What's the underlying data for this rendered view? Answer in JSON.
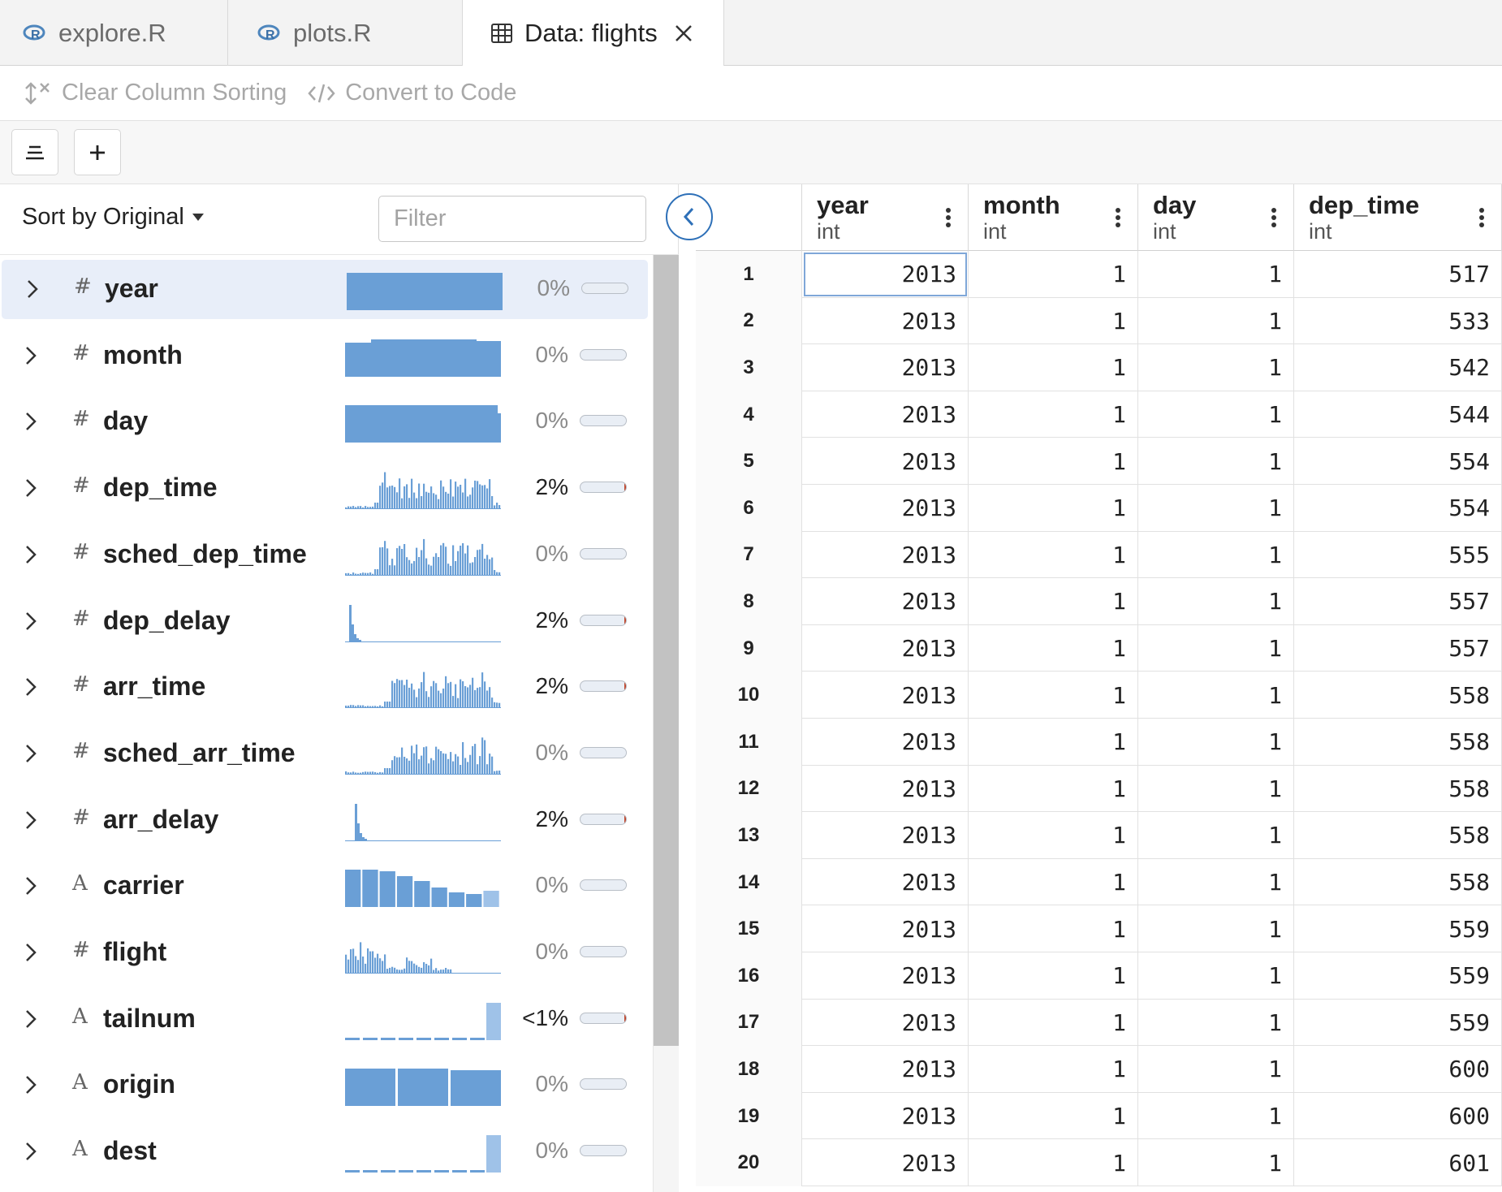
{
  "tabs": [
    {
      "label": "explore.R",
      "icon": "r-file-icon",
      "active": false
    },
    {
      "label": "plots.R",
      "icon": "r-file-icon",
      "active": false
    },
    {
      "label": "Data: flights",
      "icon": "table-icon",
      "active": true
    }
  ],
  "toolbar": {
    "clear_sorting_label": "Clear Column Sorting",
    "convert_to_code_label": "Convert to Code"
  },
  "summary_panel": {
    "sort_label": "Sort by Original",
    "filter_placeholder": "Filter",
    "columns": [
      {
        "name": "year",
        "type_glyph": "#",
        "missing": "0%",
        "missing_fraction": 0,
        "selected": true
      },
      {
        "name": "month",
        "type_glyph": "#",
        "missing": "0%",
        "missing_fraction": 0
      },
      {
        "name": "day",
        "type_glyph": "#",
        "missing": "0%",
        "missing_fraction": 0
      },
      {
        "name": "dep_time",
        "type_glyph": "#",
        "missing": "2%",
        "missing_fraction": 0.02
      },
      {
        "name": "sched_dep_time",
        "type_glyph": "#",
        "missing": "0%",
        "missing_fraction": 0
      },
      {
        "name": "dep_delay",
        "type_glyph": "#",
        "missing": "2%",
        "missing_fraction": 0.02
      },
      {
        "name": "arr_time",
        "type_glyph": "#",
        "missing": "2%",
        "missing_fraction": 0.02
      },
      {
        "name": "sched_arr_time",
        "type_glyph": "#",
        "missing": "0%",
        "missing_fraction": 0
      },
      {
        "name": "arr_delay",
        "type_glyph": "#",
        "missing": "2%",
        "missing_fraction": 0.02
      },
      {
        "name": "carrier",
        "type_glyph": "A",
        "missing": "0%",
        "missing_fraction": 0
      },
      {
        "name": "flight",
        "type_glyph": "#",
        "missing": "0%",
        "missing_fraction": 0
      },
      {
        "name": "tailnum",
        "type_glyph": "A",
        "missing": "<1%",
        "missing_fraction": 0.01
      },
      {
        "name": "origin",
        "type_glyph": "A",
        "missing": "0%",
        "missing_fraction": 0
      },
      {
        "name": "dest",
        "type_glyph": "A",
        "missing": "0%",
        "missing_fraction": 0
      }
    ]
  },
  "grid": {
    "columns": [
      {
        "name": "year",
        "type": "int"
      },
      {
        "name": "month",
        "type": "int"
      },
      {
        "name": "day",
        "type": "int"
      },
      {
        "name": "dep_time",
        "type": "int"
      }
    ],
    "rows": [
      {
        "n": "1",
        "v": [
          "2013",
          "1",
          "1",
          "517"
        ]
      },
      {
        "n": "2",
        "v": [
          "2013",
          "1",
          "1",
          "533"
        ]
      },
      {
        "n": "3",
        "v": [
          "2013",
          "1",
          "1",
          "542"
        ]
      },
      {
        "n": "4",
        "v": [
          "2013",
          "1",
          "1",
          "544"
        ]
      },
      {
        "n": "5",
        "v": [
          "2013",
          "1",
          "1",
          "554"
        ]
      },
      {
        "n": "6",
        "v": [
          "2013",
          "1",
          "1",
          "554"
        ]
      },
      {
        "n": "7",
        "v": [
          "2013",
          "1",
          "1",
          "555"
        ]
      },
      {
        "n": "8",
        "v": [
          "2013",
          "1",
          "1",
          "557"
        ]
      },
      {
        "n": "9",
        "v": [
          "2013",
          "1",
          "1",
          "557"
        ]
      },
      {
        "n": "10",
        "v": [
          "2013",
          "1",
          "1",
          "558"
        ]
      },
      {
        "n": "11",
        "v": [
          "2013",
          "1",
          "1",
          "558"
        ]
      },
      {
        "n": "12",
        "v": [
          "2013",
          "1",
          "1",
          "558"
        ]
      },
      {
        "n": "13",
        "v": [
          "2013",
          "1",
          "1",
          "558"
        ]
      },
      {
        "n": "14",
        "v": [
          "2013",
          "1",
          "1",
          "558"
        ]
      },
      {
        "n": "15",
        "v": [
          "2013",
          "1",
          "1",
          "559"
        ]
      },
      {
        "n": "16",
        "v": [
          "2013",
          "1",
          "1",
          "559"
        ]
      },
      {
        "n": "17",
        "v": [
          "2013",
          "1",
          "1",
          "559"
        ]
      },
      {
        "n": "18",
        "v": [
          "2013",
          "1",
          "1",
          "600"
        ]
      },
      {
        "n": "19",
        "v": [
          "2013",
          "1",
          "1",
          "600"
        ]
      },
      {
        "n": "20",
        "v": [
          "2013",
          "1",
          "1",
          "601"
        ]
      }
    ]
  },
  "colors": {
    "accent": "#2e70b8",
    "histogram": "#6a9fd6",
    "histogram_light": "#9fc2e8",
    "missing": "#c0462c",
    "selected_row": "#e8eef9"
  }
}
